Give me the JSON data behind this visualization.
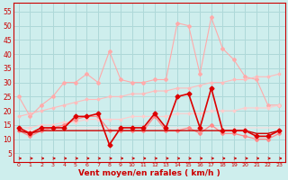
{
  "x": [
    0,
    1,
    2,
    3,
    4,
    5,
    6,
    7,
    8,
    9,
    10,
    11,
    12,
    13,
    14,
    15,
    16,
    17,
    18,
    19,
    20,
    21,
    22,
    23
  ],
  "background_color": "#ceeeed",
  "grid_color": "#aed8d8",
  "xlabel": "Vent moyen/en rafales ( km/h )",
  "xlabel_color": "#cc0000",
  "yticks": [
    5,
    10,
    15,
    20,
    25,
    30,
    35,
    40,
    45,
    50,
    55
  ],
  "ylim": [
    2,
    58
  ],
  "xlim": [
    -0.5,
    23.5
  ],
  "series": [
    {
      "label": "max_gust_high",
      "y": [
        25,
        18,
        22,
        25,
        30,
        30,
        33,
        30,
        41,
        31,
        30,
        30,
        31,
        31,
        51,
        50,
        33,
        53,
        42,
        38,
        32,
        31,
        22,
        22
      ],
      "color": "#ffaaaa",
      "lw": 0.8,
      "marker": "D",
      "ms": 2.0,
      "zorder": 2
    },
    {
      "label": "trend_high",
      "y": [
        18,
        19,
        20,
        21,
        22,
        23,
        24,
        24,
        25,
        25,
        26,
        26,
        27,
        27,
        28,
        28,
        29,
        30,
        30,
        31,
        31,
        32,
        32,
        33
      ],
      "color": "#ffbbbb",
      "lw": 0.8,
      "marker": "D",
      "ms": 1.5,
      "zorder": 2
    },
    {
      "label": "trend_mid",
      "y": [
        14,
        14,
        15,
        15,
        16,
        16,
        17,
        17,
        17,
        17,
        18,
        18,
        18,
        18,
        19,
        19,
        19,
        20,
        20,
        20,
        21,
        21,
        21,
        22
      ],
      "color": "#ffcccc",
      "lw": 0.8,
      "marker": "D",
      "ms": 1.5,
      "zorder": 2
    },
    {
      "label": "trend_low",
      "y": [
        13,
        13,
        13,
        13,
        14,
        14,
        14,
        14,
        14,
        14,
        14,
        14,
        14,
        14,
        14,
        14,
        14,
        14,
        14,
        14,
        14,
        14,
        14,
        14
      ],
      "color": "#ffdddd",
      "lw": 0.8,
      "marker": null,
      "ms": 0,
      "zorder": 2
    },
    {
      "label": "avg_mid",
      "y": [
        13,
        11,
        13,
        14,
        15,
        17,
        18,
        18,
        13,
        13,
        13,
        13,
        18,
        13,
        13,
        14,
        12,
        15,
        12,
        12,
        11,
        10,
        10,
        12
      ],
      "color": "#ff8888",
      "lw": 0.9,
      "marker": "D",
      "ms": 2.0,
      "zorder": 3
    },
    {
      "label": "wind_dark",
      "y": [
        14,
        12,
        14,
        14,
        14,
        18,
        18,
        19,
        8,
        14,
        14,
        14,
        19,
        14,
        25,
        26,
        14,
        28,
        13,
        13,
        13,
        11,
        11,
        13
      ],
      "color": "#dd0000",
      "lw": 1.2,
      "marker": "D",
      "ms": 2.5,
      "zorder": 5
    },
    {
      "label": "flat_base",
      "y": [
        13,
        12,
        13,
        13,
        13,
        13,
        13,
        13,
        13,
        13,
        13,
        13,
        13,
        13,
        13,
        13,
        13,
        13,
        13,
        13,
        13,
        12,
        12,
        13
      ],
      "color": "#cc0000",
      "lw": 1.0,
      "marker": null,
      "ms": 0,
      "zorder": 4
    }
  ],
  "arrows": {
    "color": "#cc0000",
    "y": 3.2,
    "directions": [
      0,
      0,
      0,
      0,
      0,
      0,
      0,
      315,
      315,
      315,
      315,
      315,
      315,
      270,
      270,
      270,
      270,
      270,
      270,
      315,
      315,
      315,
      315,
      315
    ]
  }
}
